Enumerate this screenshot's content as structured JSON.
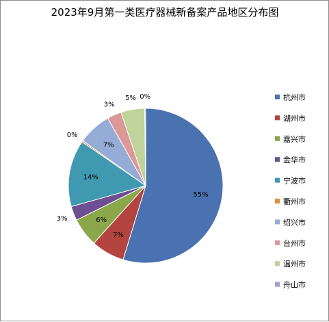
{
  "chart_data": {
    "type": "pie",
    "title": "2023年9月第一类医疗器械新备案产品地区分布图",
    "categories": [
      "杭州市",
      "湖州市",
      "嘉兴市",
      "金华市",
      "宁波市",
      "衢州市",
      "绍兴市",
      "台州市",
      "温州市",
      "舟山市"
    ],
    "values": [
      55,
      7,
      6,
      3,
      14,
      0.3,
      7,
      3,
      5,
      0.2
    ],
    "data_labels": [
      "55%",
      "7%",
      "6%",
      "3%",
      "14%",
      "0%",
      "7%",
      "3%",
      "5%",
      "0%"
    ],
    "colors": [
      "#4a72b0",
      "#b4443f",
      "#8aa84a",
      "#6d4f94",
      "#3e99b1",
      "#e48b3a",
      "#94acd6",
      "#dc9896",
      "#bfd39a",
      "#a99bc3"
    ],
    "start_angle_deg": 0,
    "direction": "clockwise",
    "legend_position": "right"
  }
}
